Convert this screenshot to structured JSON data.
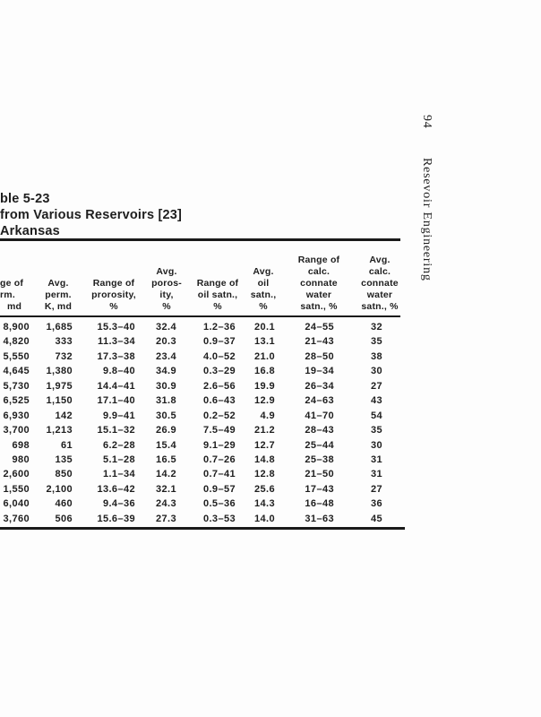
{
  "running_head": {
    "page_number": "94",
    "text": "Resevoir Engineering"
  },
  "title": {
    "line1": "ble 5-23",
    "line2": "from Various Reservoirs [23]",
    "line3": "Arkansas"
  },
  "table": {
    "headers": [
      {
        "lines": [
          "ge of",
          "rm.",
          "md"
        ]
      },
      {
        "lines": [
          "Avg.",
          "perm.",
          "K, md"
        ]
      },
      {
        "lines": [
          "Range of",
          "prorosity,",
          "%"
        ]
      },
      {
        "lines": [
          "Avg.",
          "poros-",
          "ity,",
          "%"
        ]
      },
      {
        "lines": [
          "Range of",
          "oil satn.,",
          "%"
        ]
      },
      {
        "lines": [
          "Avg.",
          "oil",
          "satn.,",
          "%"
        ]
      },
      {
        "lines": [
          "Range of",
          "calc.",
          "connate",
          "water",
          "satn., %"
        ]
      },
      {
        "lines": [
          "Avg.",
          "calc.",
          "connate",
          "water",
          "satn., %"
        ]
      }
    ],
    "rows": [
      [
        "8,900",
        "1,685",
        "15.3–40",
        "32.4",
        "1.2–36",
        "20.1",
        "24–55",
        "32"
      ],
      [
        "4,820",
        "333",
        "11.3–34",
        "20.3",
        "0.9–37",
        "13.1",
        "21–43",
        "35"
      ],
      [
        "5,550",
        "732",
        "17.3–38",
        "23.4",
        "4.0–52",
        "21.0",
        "28–50",
        "38"
      ],
      [
        "4,645",
        "1,380",
        "9.8–40",
        "34.9",
        "0.3–29",
        "16.8",
        "19–34",
        "30"
      ],
      [
        "5,730",
        "1,975",
        "14.4–41",
        "30.9",
        "2.6–56",
        "19.9",
        "26–34",
        "27"
      ],
      [
        "6,525",
        "1,150",
        "17.1–40",
        "31.8",
        "0.6–43",
        "12.9",
        "24–63",
        "43"
      ],
      [
        "6,930",
        "142",
        "9.9–41",
        "30.5",
        "0.2–52",
        "4.9",
        "41–70",
        "54"
      ],
      [
        "3,700",
        "1,213",
        "15.1–32",
        "26.9",
        "7.5–49",
        "21.2",
        "28–43",
        "35"
      ],
      [
        "698",
        "61",
        "6.2–28",
        "15.4",
        "9.1–29",
        "12.7",
        "25–44",
        "30"
      ],
      [
        "980",
        "135",
        "5.1–28",
        "16.5",
        "0.7–26",
        "14.8",
        "25–38",
        "31"
      ],
      [
        "2,600",
        "850",
        "1.1–34",
        "14.2",
        "0.7–41",
        "12.8",
        "21–50",
        "31"
      ],
      [
        "1,550",
        "2,100",
        "13.6–42",
        "32.1",
        "0.9–57",
        "25.6",
        "17–43",
        "27"
      ],
      [
        "6,040",
        "460",
        "9.4–36",
        "24.3",
        "0.5–36",
        "14.3",
        "16–48",
        "36"
      ],
      [
        "3,760",
        "506",
        "15.6–39",
        "27.3",
        "0.3–53",
        "14.0",
        "31–63",
        "45"
      ]
    ]
  },
  "colors": {
    "ink": "#1e1e1e",
    "paper": "#fdfdfd",
    "rule": "#1a1a1a"
  }
}
